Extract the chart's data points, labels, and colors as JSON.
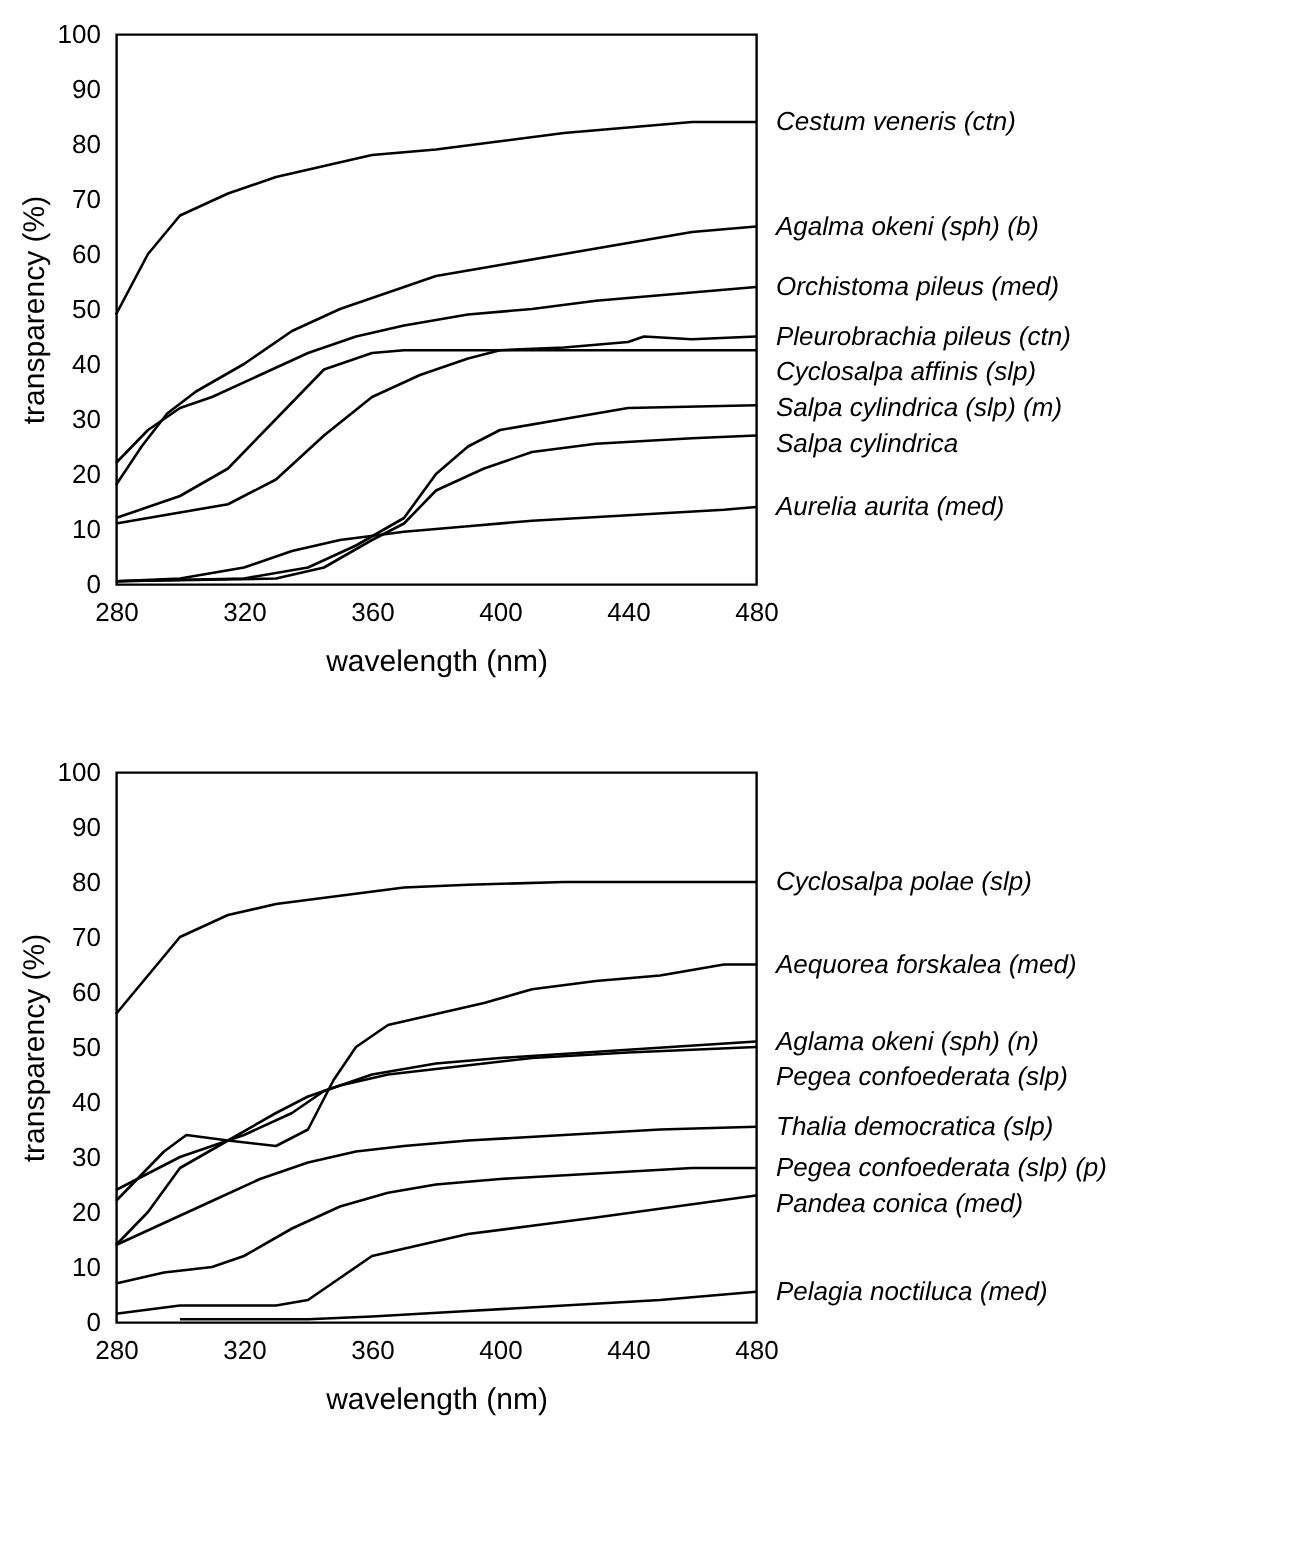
{
  "chart_data": [
    {
      "type": "line",
      "xlabel": "wavelength (nm)",
      "ylabel": "transparency (%)",
      "xlim": [
        280,
        480
      ],
      "xticks": [
        280,
        320,
        360,
        400,
        440,
        480
      ],
      "ylim": [
        0,
        100
      ],
      "yticks": [
        0,
        10,
        20,
        30,
        40,
        50,
        60,
        70,
        80,
        90,
        100
      ],
      "grid": false,
      "legend": false,
      "series": [
        {
          "name": "Cestum veneris (ctn)",
          "color": "#000000",
          "x": [
            280,
            290,
            300,
            315,
            330,
            345,
            360,
            380,
            400,
            420,
            440,
            460,
            480
          ],
          "values": [
            49,
            60,
            67,
            71,
            74,
            76,
            78,
            79,
            80.5,
            82,
            83,
            84,
            84
          ]
        },
        {
          "name": "Agalma okeni (sph) (b)",
          "color": "#000000",
          "x": [
            280,
            288,
            296,
            305,
            320,
            335,
            350,
            365,
            380,
            400,
            420,
            440,
            460,
            480
          ],
          "values": [
            18,
            25,
            31,
            35,
            40,
            46,
            50,
            53,
            56,
            58,
            60,
            62,
            64,
            65
          ]
        },
        {
          "name": "Orchistoma pileus (med)",
          "color": "#000000",
          "x": [
            280,
            290,
            300,
            310,
            325,
            340,
            355,
            370,
            390,
            410,
            430,
            450,
            480
          ],
          "values": [
            22,
            28,
            32,
            34,
            38,
            42,
            45,
            47,
            49,
            50,
            51.5,
            52.5,
            54
          ]
        },
        {
          "name": "Pleurobrachia pileus (ctn)",
          "color": "#000000",
          "x": [
            280,
            300,
            315,
            330,
            345,
            360,
            375,
            390,
            400,
            420,
            440,
            445,
            460,
            480
          ],
          "values": [
            11,
            13,
            14.5,
            19,
            27,
            34,
            38,
            41,
            42.5,
            43,
            44,
            45,
            44.5,
            45
          ]
        },
        {
          "name": "Cyclosalpa affinis (slp)",
          "color": "#000000",
          "x": [
            280,
            300,
            315,
            330,
            345,
            360,
            370,
            400,
            440,
            480
          ],
          "values": [
            12,
            16,
            21,
            30,
            39,
            42,
            42.5,
            42.5,
            42.5,
            42.5
          ]
        },
        {
          "name": "Salpa cylindrica (slp) (m)",
          "color": "#000000",
          "x": [
            280,
            320,
            340,
            355,
            370,
            380,
            390,
            400,
            420,
            440,
            480
          ],
          "values": [
            0.5,
            1,
            3,
            7,
            12,
            20,
            25,
            28,
            30,
            32,
            32.5
          ]
        },
        {
          "name": "Salpa cylindrica",
          "color": "#000000",
          "x": [
            280,
            330,
            345,
            360,
            370,
            380,
            395,
            410,
            430,
            460,
            480
          ],
          "values": [
            0.5,
            1,
            3,
            8,
            11,
            17,
            21,
            24,
            25.5,
            26.5,
            27
          ]
        },
        {
          "name": "Aurelia aurita (med)",
          "color": "#000000",
          "x": [
            280,
            300,
            320,
            335,
            350,
            370,
            390,
            410,
            440,
            470,
            480
          ],
          "values": [
            0.5,
            1,
            3,
            6,
            8,
            9.5,
            10.5,
            11.5,
            12.5,
            13.5,
            14
          ]
        }
      ]
    },
    {
      "type": "line",
      "xlabel": "wavelength (nm)",
      "ylabel": "transparency (%)",
      "xlim": [
        280,
        480
      ],
      "xticks": [
        280,
        320,
        360,
        400,
        440,
        480
      ],
      "ylim": [
        0,
        100
      ],
      "yticks": [
        0,
        10,
        20,
        30,
        40,
        50,
        60,
        70,
        80,
        90,
        100
      ],
      "grid": false,
      "legend": false,
      "series": [
        {
          "name": "Cyclosalpa polae (slp)",
          "color": "#000000",
          "x": [
            280,
            290,
            300,
            315,
            330,
            350,
            370,
            390,
            420,
            480
          ],
          "values": [
            56,
            63,
            70,
            74,
            76,
            77.5,
            79,
            79.5,
            80,
            80
          ]
        },
        {
          "name": "Aequorea forskalea (med)",
          "color": "#000000",
          "x": [
            280,
            295,
            302,
            315,
            330,
            340,
            348,
            355,
            365,
            380,
            395,
            410,
            430,
            450,
            470,
            480
          ],
          "values": [
            22,
            31,
            34,
            33,
            32,
            35,
            44,
            50,
            54,
            56,
            58,
            60.5,
            62,
            63,
            65,
            65
          ]
        },
        {
          "name": "Aglama okeni (sph) (n)",
          "color": "#000000",
          "x": [
            280,
            290,
            300,
            320,
            335,
            345,
            360,
            380,
            400,
            440,
            480
          ],
          "values": [
            24,
            27,
            30,
            34,
            38,
            42,
            45,
            47,
            48,
            49.5,
            51
          ]
        },
        {
          "name": "Pegea confoederata (slp)",
          "color": "#000000",
          "x": [
            280,
            290,
            300,
            315,
            330,
            340,
            350,
            365,
            380,
            410,
            440,
            480
          ],
          "values": [
            14,
            20,
            28,
            33,
            38,
            41,
            43,
            45,
            46,
            48,
            49,
            50
          ]
        },
        {
          "name": "Thalia democratica (slp)",
          "color": "#000000",
          "x": [
            280,
            295,
            310,
            325,
            340,
            355,
            370,
            390,
            420,
            450,
            480
          ],
          "values": [
            14,
            18,
            22,
            26,
            29,
            31,
            32,
            33,
            34,
            35,
            35.5
          ]
        },
        {
          "name": "Pegea confoederata (slp) (p)",
          "color": "#000000",
          "x": [
            280,
            295,
            310,
            320,
            335,
            350,
            365,
            380,
            400,
            430,
            460,
            480
          ],
          "values": [
            7,
            9,
            10,
            12,
            17,
            21,
            23.5,
            25,
            26,
            27,
            28,
            28
          ]
        },
        {
          "name": "Pandea conica (med)",
          "color": "#000000",
          "x": [
            280,
            300,
            330,
            340,
            350,
            360,
            375,
            390,
            410,
            430,
            455,
            480
          ],
          "values": [
            1.5,
            3,
            3,
            4,
            8,
            12,
            14,
            16,
            17.5,
            19,
            21,
            23
          ]
        },
        {
          "name": "Pelagia noctiluca (med)",
          "color": "#000000",
          "x": [
            300,
            340,
            360,
            390,
            420,
            450,
            480
          ],
          "values": [
            0.5,
            0.5,
            1,
            2,
            3,
            4,
            5.5
          ]
        }
      ]
    }
  ]
}
